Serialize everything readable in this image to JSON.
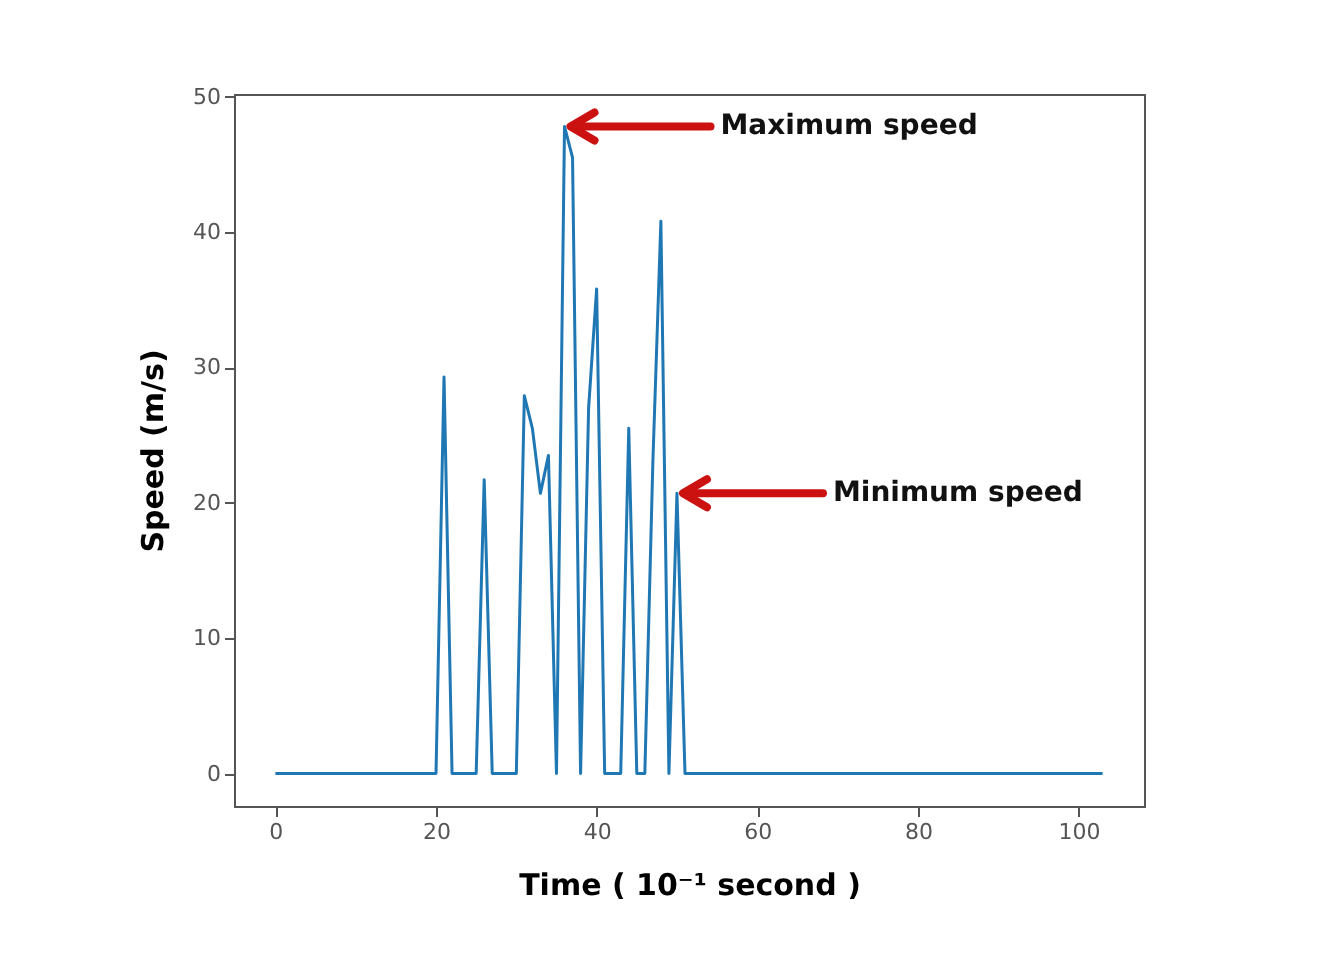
{
  "chart_data": {
    "type": "line",
    "xlabel": "Time ( 10⁻¹ second )",
    "ylabel": "Speed (m/s)",
    "x": [
      0,
      20,
      21,
      22,
      25,
      26,
      27,
      30,
      31,
      32,
      33,
      34,
      35,
      36,
      37,
      38,
      39,
      40,
      41,
      43,
      44,
      45,
      46,
      47,
      48,
      49,
      50,
      51,
      103
    ],
    "series": [
      {
        "color": "#1f77b4",
        "values": [
          0,
          0,
          29.3,
          0,
          0,
          21.7,
          0,
          0,
          27.9,
          25.5,
          20.7,
          23.5,
          0,
          47.8,
          45.5,
          0,
          27,
          35.8,
          0,
          0,
          25.5,
          0,
          0,
          23,
          40.8,
          0,
          20.7,
          0,
          0
        ]
      }
    ],
    "xlim": [
      -5.15,
      108.15
    ],
    "ylim": [
      -2.4,
      50.2
    ],
    "xticks": [
      0,
      20,
      40,
      60,
      80,
      100
    ],
    "yticks": [
      0,
      10,
      20,
      30,
      40,
      50
    ],
    "annotations": [
      {
        "text": "Maximum speed",
        "x": 36,
        "y": 47.8
      },
      {
        "text": "Minimum speed",
        "x": 50,
        "y": 20.7
      }
    ],
    "marker": "none",
    "line_style": "solid",
    "grid": false
  }
}
